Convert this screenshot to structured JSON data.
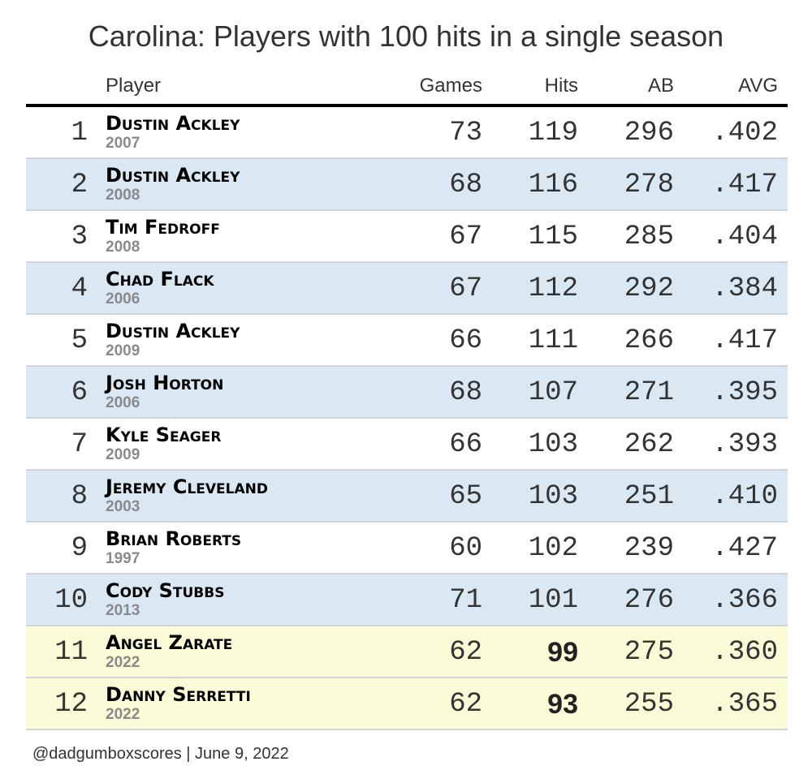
{
  "chart_data": {
    "type": "table",
    "title": "Carolina: Players with 100 hits in a single season",
    "columns": [
      "Player",
      "Games",
      "Hits",
      "AB",
      "AVG"
    ],
    "rows": [
      {
        "rank": "1",
        "name": "Dustin Ackley",
        "year": "2007",
        "games": "73",
        "hits": "119",
        "ab": "296",
        "avg": ".402",
        "highlight": false
      },
      {
        "rank": "2",
        "name": "Dustin Ackley",
        "year": "2008",
        "games": "68",
        "hits": "116",
        "ab": "278",
        "avg": ".417",
        "highlight": false
      },
      {
        "rank": "3",
        "name": "Tim Fedroff",
        "year": "2008",
        "games": "67",
        "hits": "115",
        "ab": "285",
        "avg": ".404",
        "highlight": false
      },
      {
        "rank": "4",
        "name": "Chad Flack",
        "year": "2006",
        "games": "67",
        "hits": "112",
        "ab": "292",
        "avg": ".384",
        "highlight": false
      },
      {
        "rank": "5",
        "name": "Dustin Ackley",
        "year": "2009",
        "games": "66",
        "hits": "111",
        "ab": "266",
        "avg": ".417",
        "highlight": false
      },
      {
        "rank": "6",
        "name": "Josh Horton",
        "year": "2006",
        "games": "68",
        "hits": "107",
        "ab": "271",
        "avg": ".395",
        "highlight": false
      },
      {
        "rank": "7",
        "name": "Kyle Seager",
        "year": "2009",
        "games": "66",
        "hits": "103",
        "ab": "262",
        "avg": ".393",
        "highlight": false
      },
      {
        "rank": "8",
        "name": "Jeremy Cleveland",
        "year": "2003",
        "games": "65",
        "hits": "103",
        "ab": "251",
        "avg": ".410",
        "highlight": false
      },
      {
        "rank": "9",
        "name": "Brian Roberts",
        "year": "1997",
        "games": "60",
        "hits": "102",
        "ab": "239",
        "avg": ".427",
        "highlight": false
      },
      {
        "rank": "10",
        "name": "Cody Stubbs",
        "year": "2013",
        "games": "71",
        "hits": "101",
        "ab": "276",
        "avg": ".366",
        "highlight": false
      },
      {
        "rank": "11",
        "name": "Angel Zarate",
        "year": "2022",
        "games": "62",
        "hits": "99",
        "ab": "275",
        "avg": ".360",
        "highlight": true
      },
      {
        "rank": "12",
        "name": "Danny Serretti",
        "year": "2022",
        "games": "62",
        "hits": "93",
        "ab": "255",
        "avg": ".365",
        "highlight": true
      }
    ],
    "colors": {
      "stripe": "#d9e8f3",
      "highlight": "#fcfbd8",
      "header_rule": "#000000"
    }
  },
  "footer": "@dadgumboxscores | June 9, 2022"
}
